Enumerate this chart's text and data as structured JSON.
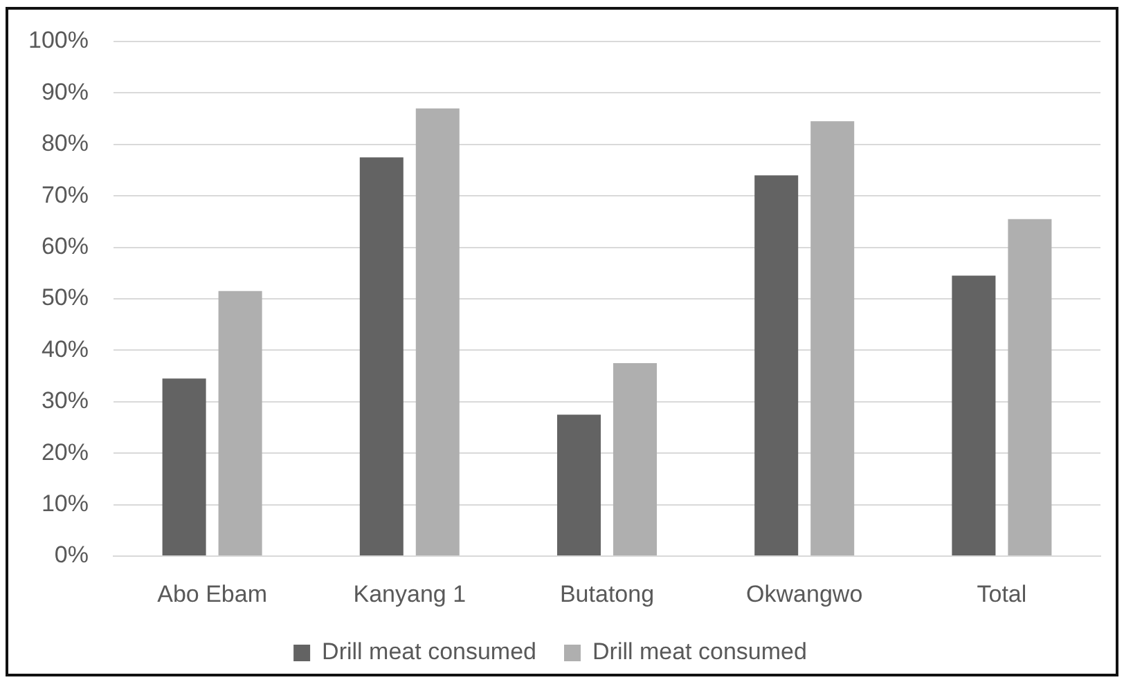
{
  "chart_data": {
    "type": "bar",
    "categories": [
      "Abo Ebam",
      "Kanyang 1",
      "Butatong",
      "Okwangwo",
      "Total"
    ],
    "series": [
      {
        "name": "Drill meat consumed",
        "color": "#636363",
        "values": [
          34.5,
          77.5,
          27.5,
          74,
          54.5
        ]
      },
      {
        "name": "Drill meat consumed",
        "color": "#afafaf",
        "values": [
          51.5,
          87,
          37.5,
          84.5,
          65.5
        ]
      }
    ],
    "ylim": [
      0,
      100
    ],
    "yticks": [
      {
        "value": 0,
        "label": "0%"
      },
      {
        "value": 10,
        "label": "10%"
      },
      {
        "value": 20,
        "label": "20%"
      },
      {
        "value": 30,
        "label": "30%"
      },
      {
        "value": 40,
        "label": "40%"
      },
      {
        "value": 50,
        "label": "50%"
      },
      {
        "value": 60,
        "label": "60%"
      },
      {
        "value": 70,
        "label": "70%"
      },
      {
        "value": 80,
        "label": "80%"
      },
      {
        "value": 90,
        "label": "90%"
      },
      {
        "value": 100,
        "label": "100%"
      }
    ],
    "grid": "y",
    "legend": "bottom"
  }
}
